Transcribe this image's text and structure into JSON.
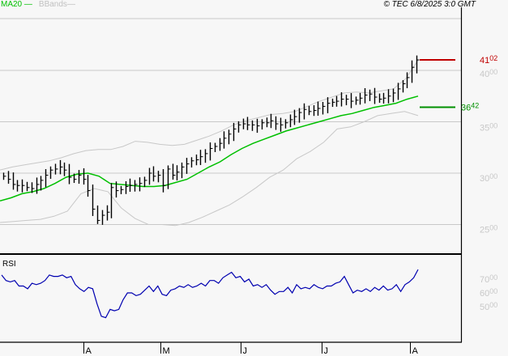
{
  "header": {
    "legend": [
      {
        "label": "MA20",
        "color": "#00c000"
      },
      {
        "label": "BBands",
        "color": "#c0c0c0"
      }
    ],
    "copyright": "© TEC 6/8/2025 3:0 GMT"
  },
  "rsi_panel": {
    "title": "RSI"
  },
  "chart_data": [
    {
      "type": "line",
      "title": "Price chart (daily bars) with MA20 and Bollinger Bands",
      "xlabel": "",
      "ylabel": "",
      "ylim": [
        23.8,
        43.6
      ],
      "grid": true,
      "y_ticks": [
        "40.00",
        "35.00",
        "30.00",
        "25.00"
      ],
      "x_ticks": [
        "A",
        "M",
        "J",
        "J",
        "A"
      ],
      "legend": [
        "MA20",
        "BBands"
      ],
      "annotations": [
        {
          "label": "41.02",
          "color": "#c00000",
          "meaning": "last price / resistance level"
        },
        {
          "label": "36.42",
          "color": "#009000",
          "meaning": "support level"
        }
      ],
      "series": [
        {
          "name": "Price (approx. close)",
          "values": [
            29.7,
            29.4,
            28.9,
            28.8,
            28.8,
            28.6,
            28.5,
            28.9,
            29.3,
            29.8,
            30.3,
            30.4,
            30.6,
            30.3,
            29.6,
            29.4,
            29.8,
            29.4,
            28.3,
            26.5,
            25.4,
            25.9,
            26.2,
            28.6,
            28.3,
            28.4,
            28.7,
            28.8,
            28.9,
            29.0,
            29.3,
            30.0,
            29.7,
            29.8,
            28.8,
            30.4,
            29.8,
            30.1,
            30.6,
            30.9,
            31.2,
            31.3,
            31.6,
            31.9,
            32.4,
            32.6,
            32.9,
            33.4,
            33.8,
            34.3,
            34.7,
            34.8,
            34.7,
            34.7,
            34.6,
            34.9,
            34.9,
            35.1,
            34.8,
            34.7,
            34.9,
            35.2,
            35.5,
            35.9,
            36.2,
            36.0,
            36.1,
            36.3,
            36.5,
            36.8,
            36.9,
            37.0,
            37.2,
            37.2,
            37.0,
            37.1,
            37.3,
            37.6,
            37.7,
            37.4,
            37.2,
            37.3,
            37.5,
            37.8,
            38.2,
            38.7,
            39.3,
            40.3,
            41.02
          ]
        },
        {
          "name": "MA20",
          "values": [
            27.3,
            27.6,
            28.0,
            28.2,
            28.5,
            29.0,
            29.6,
            29.9,
            30.0,
            29.7,
            29.0,
            28.9,
            28.8,
            28.7,
            28.7,
            28.8,
            29.1,
            29.4,
            30.0,
            30.6,
            31.1,
            31.8,
            32.4,
            32.9,
            33.3,
            33.7,
            34.1,
            34.4,
            34.7,
            35.0,
            35.3,
            35.6,
            35.8,
            36.1,
            36.4,
            36.6,
            36.8,
            37.2,
            37.5
          ]
        },
        {
          "name": "BBands upper",
          "values": [
            30.3,
            30.6,
            30.8,
            31.0,
            31.2,
            31.5,
            31.9,
            32.2,
            32.3,
            32.3,
            32.6,
            33.1,
            33.0,
            32.8,
            32.7,
            32.8,
            33.2,
            33.6,
            34.1,
            34.7,
            35.1,
            35.4,
            35.7,
            35.8,
            36.0,
            36.5,
            37.0,
            37.4,
            37.8,
            37.9,
            37.8,
            38.0,
            38.2,
            39.2,
            41.0
          ]
        },
        {
          "name": "BBands lower",
          "values": [
            25.2,
            25.3,
            25.4,
            25.5,
            25.8,
            26.3,
            28.0,
            28.5,
            28.2,
            26.6,
            25.6,
            25.0,
            25.0,
            24.9,
            25.2,
            25.7,
            26.3,
            26.9,
            27.7,
            28.6,
            29.6,
            30.3,
            31.4,
            32.1,
            33.0,
            34.3,
            34.5,
            35.0,
            35.6,
            35.8,
            36.0,
            35.6
          ]
        }
      ]
    },
    {
      "type": "line",
      "title": "RSI",
      "xlabel": "",
      "ylabel": "",
      "ylim": [
        35,
        80
      ],
      "y_ticks": [
        "70.00",
        "60.00",
        "50.00"
      ],
      "x_ticks": [
        "A",
        "M",
        "J",
        "J",
        "A"
      ],
      "series": [
        {
          "name": "RSI",
          "values": [
            73,
            69,
            68,
            69,
            65,
            65,
            63,
            67,
            66,
            67,
            69,
            73,
            72,
            72,
            73,
            71,
            72,
            66,
            63,
            61,
            64,
            63,
            52,
            43,
            42,
            48,
            47,
            48,
            55,
            60,
            60,
            58,
            59,
            62,
            65,
            61,
            65,
            59,
            58,
            62,
            63,
            65,
            64,
            66,
            64,
            65,
            67,
            65,
            69,
            69,
            67,
            71,
            73,
            75,
            71,
            72,
            68,
            70,
            65,
            66,
            64,
            66,
            62,
            59,
            61,
            61,
            64,
            60,
            66,
            63,
            64,
            63,
            66,
            64,
            63,
            65,
            65,
            67,
            68,
            72,
            66,
            60,
            62,
            61,
            63,
            61,
            64,
            62,
            65,
            62,
            63,
            66,
            61,
            66,
            68,
            71,
            77
          ]
        }
      ]
    }
  ],
  "axes": {
    "price_labels": [
      {
        "int": "41",
        "dec": "02",
        "color": "#c00000"
      },
      {
        "int": "40",
        "dec": "00",
        "color": "#c8c8c8"
      },
      {
        "int": "36",
        "dec": "42",
        "color": "#009000"
      },
      {
        "int": "35",
        "dec": "00",
        "color": "#c8c8c8"
      },
      {
        "int": "30",
        "dec": "00",
        "color": "#c8c8c8"
      },
      {
        "int": "25",
        "dec": "00",
        "color": "#c8c8c8"
      }
    ],
    "rsi_labels": [
      {
        "int": "70",
        "dec": "00"
      },
      {
        "int": "60",
        "dec": "00"
      },
      {
        "int": "50",
        "dec": "00"
      }
    ],
    "months": [
      "A",
      "M",
      "J",
      "J",
      "A"
    ]
  },
  "colors": {
    "price_bar": "#000000",
    "ma20": "#00c000",
    "bbands": "#c8c8c8",
    "rsi_line": "#0000b0",
    "resistance": "#c00000",
    "support": "#009000",
    "grid": "#c8c8c8"
  }
}
